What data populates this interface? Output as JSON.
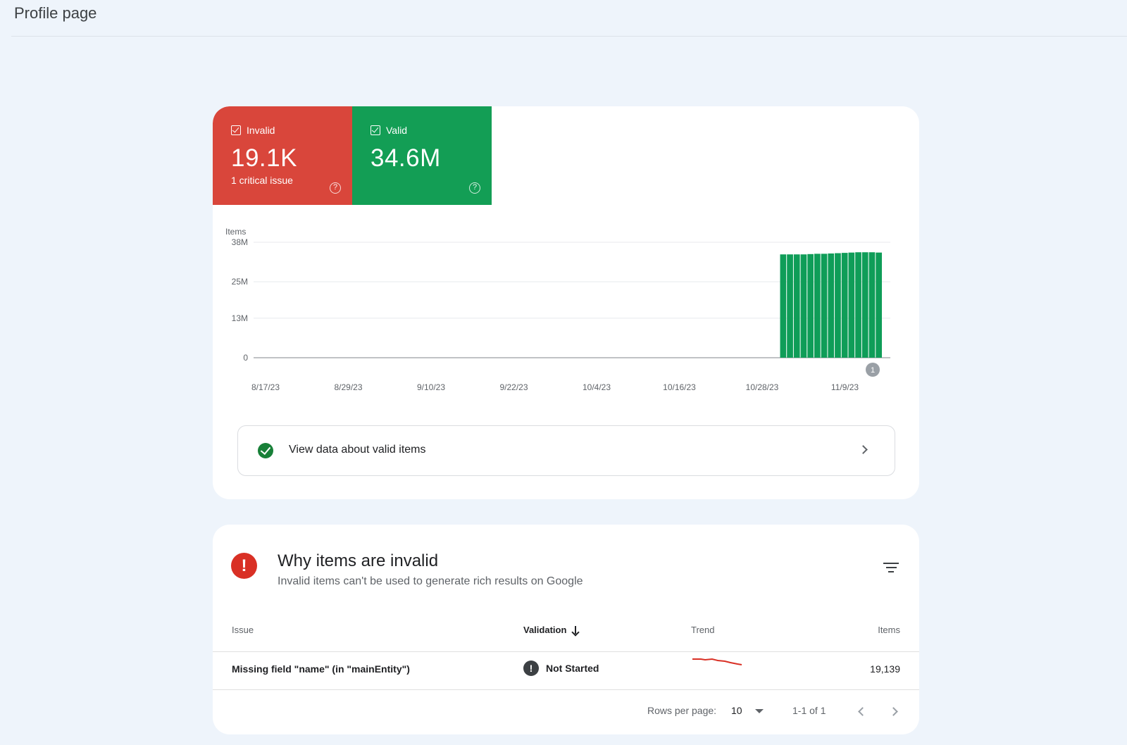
{
  "page": {
    "title": "Profile page"
  },
  "tiles": [
    {
      "label": "Invalid",
      "value": "19.1K",
      "sub": "1 critical issue",
      "color": "#d9463b"
    },
    {
      "label": "Valid",
      "value": "34.6M",
      "sub": "",
      "color": "#139e55"
    }
  ],
  "chart_data": {
    "type": "bar",
    "ylabel": "Items",
    "y_ticks": [
      "38M",
      "25M",
      "13M",
      "0"
    ],
    "ylim": [
      0,
      38000000
    ],
    "x_tick_labels": [
      "8/17/23",
      "8/29/23",
      "9/10/23",
      "9/22/23",
      "10/4/23",
      "10/16/23",
      "10/28/23",
      "11/9/23"
    ],
    "series": [
      {
        "color": "#0f9d58",
        "values": [
          34000000,
          34000000,
          34000000,
          34000000,
          34100000,
          34200000,
          34200000,
          34300000,
          34400000,
          34500000,
          34600000,
          34700000,
          34700000,
          34700000,
          34600000
        ]
      }
    ],
    "annotation": "1",
    "grid": true
  },
  "view_valid": {
    "label": "View data about valid items"
  },
  "why": {
    "title": "Why items are invalid",
    "subtitle": "Invalid items can't be used to generate rich results on Google"
  },
  "table": {
    "headers": {
      "issue": "Issue",
      "validation": "Validation",
      "trend": "Trend",
      "items": "Items"
    },
    "rows": [
      {
        "issue": "Missing field \"name\" (in \"mainEntity\")",
        "validation": "Not Started",
        "items": "19,139"
      }
    ]
  },
  "pagination": {
    "rows_label": "Rows per page:",
    "rows_value": "10",
    "range": "1-1 of 1"
  }
}
